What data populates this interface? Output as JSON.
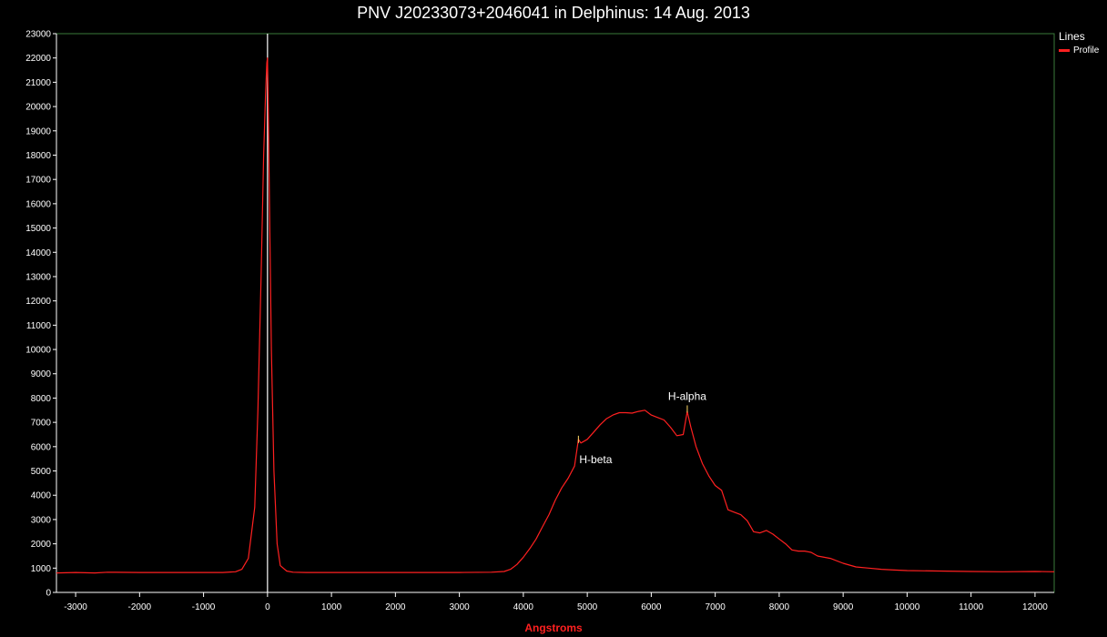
{
  "chart_data": {
    "type": "line",
    "title": "PNV J20233073+2046041 in Delphinus: 14 Aug. 2013",
    "xlabel": "Angstroms",
    "ylabel": "",
    "xlim": [
      -3300,
      12300
    ],
    "ylim": [
      0,
      23000
    ],
    "x_ticks": [
      -3000,
      -2000,
      -1000,
      0,
      1000,
      2000,
      3000,
      4000,
      5000,
      6000,
      7000,
      8000,
      9000,
      10000,
      11000,
      12000
    ],
    "y_ticks": [
      0,
      1000,
      2000,
      3000,
      4000,
      5000,
      6000,
      7000,
      8000,
      9000,
      10000,
      11000,
      12000,
      13000,
      14000,
      15000,
      16000,
      17000,
      18000,
      19000,
      20000,
      21000,
      22000,
      23000
    ],
    "grid": false,
    "legend_title": "Lines",
    "legend_position": "top-right",
    "zero_order_marker_x": 0,
    "series": [
      {
        "name": "Profile",
        "color": "#ff2020",
        "x": [
          -3300,
          -3000,
          -2700,
          -2500,
          -2000,
          -1500,
          -1000,
          -700,
          -500,
          -400,
          -300,
          -200,
          -150,
          -100,
          -60,
          -30,
          -10,
          0,
          10,
          30,
          60,
          100,
          150,
          200,
          300,
          400,
          600,
          1000,
          1500,
          2000,
          2500,
          3000,
          3500,
          3700,
          3800,
          3900,
          4000,
          4100,
          4200,
          4300,
          4400,
          4500,
          4600,
          4700,
          4800,
          4861,
          4900,
          5000,
          5100,
          5200,
          5300,
          5400,
          5500,
          5600,
          5700,
          5800,
          5900,
          6000,
          6100,
          6200,
          6300,
          6400,
          6500,
          6563,
          6620,
          6700,
          6800,
          6900,
          7000,
          7100,
          7200,
          7300,
          7400,
          7500,
          7600,
          7700,
          7800,
          7900,
          8000,
          8100,
          8200,
          8300,
          8400,
          8500,
          8600,
          8800,
          9000,
          9200,
          9400,
          9600,
          9800,
          10000,
          10500,
          11000,
          11500,
          12000,
          12300
        ],
        "y": [
          800,
          820,
          800,
          830,
          820,
          820,
          820,
          820,
          850,
          950,
          1400,
          3500,
          7500,
          13000,
          18000,
          20500,
          21800,
          22000,
          20500,
          16000,
          10000,
          5000,
          2000,
          1100,
          880,
          830,
          820,
          820,
          820,
          820,
          820,
          820,
          830,
          860,
          950,
          1150,
          1450,
          1800,
          2200,
          2700,
          3200,
          3800,
          4300,
          4700,
          5200,
          6300,
          6150,
          6300,
          6600,
          6900,
          7150,
          7300,
          7400,
          7400,
          7380,
          7450,
          7500,
          7300,
          7200,
          7100,
          6800,
          6450,
          6500,
          7450,
          6800,
          6000,
          5300,
          4800,
          4400,
          4200,
          3400,
          3300,
          3200,
          2950,
          2500,
          2450,
          2550,
          2400,
          2200,
          2000,
          1750,
          1700,
          1700,
          1650,
          1500,
          1400,
          1200,
          1050,
          1000,
          950,
          920,
          900,
          880,
          860,
          850,
          860,
          850
        ]
      }
    ],
    "annotations": [
      {
        "text": "H-beta",
        "x": 4861,
        "y": 6300,
        "placement": "below"
      },
      {
        "text": "H-alpha",
        "x": 6563,
        "y": 7550,
        "placement": "above"
      }
    ]
  }
}
